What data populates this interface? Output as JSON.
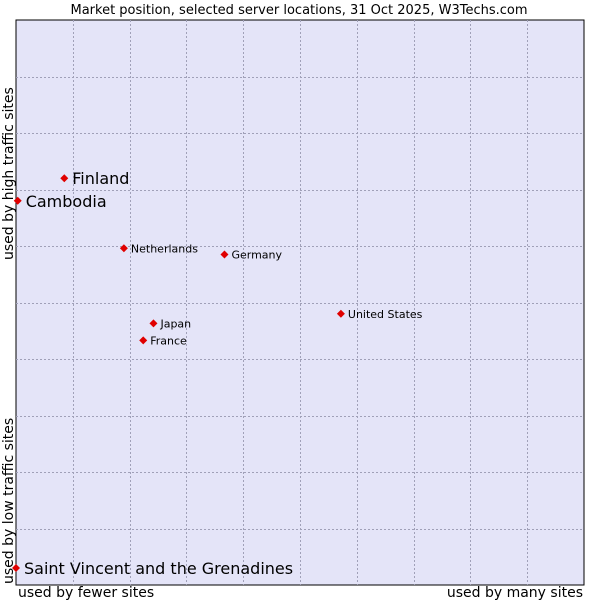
{
  "chart_data": {
    "type": "scatter",
    "title": "Market position, selected server locations, 31 Oct 2025, W3Techs.com",
    "xlabel_left": "used by fewer sites",
    "xlabel_right": "used by many sites",
    "ylabel_bottom": "used by low traffic sites",
    "ylabel_top": "used by high traffic sites",
    "xlim": [
      0,
      100
    ],
    "ylim": [
      0,
      100
    ],
    "grid": true,
    "points": [
      {
        "label": "Finland",
        "x": 8.5,
        "y": 72.0,
        "emphasis": true
      },
      {
        "label": "Cambodia",
        "x": 0.3,
        "y": 68.0,
        "emphasis": true
      },
      {
        "label": "Netherlands",
        "x": 19.0,
        "y": 59.6,
        "emphasis": false
      },
      {
        "label": "Germany",
        "x": 36.7,
        "y": 58.5,
        "emphasis": false
      },
      {
        "label": "United States",
        "x": 57.2,
        "y": 48.0,
        "emphasis": false
      },
      {
        "label": "Japan",
        "x": 24.2,
        "y": 46.3,
        "emphasis": false
      },
      {
        "label": "France",
        "x": 22.4,
        "y": 43.3,
        "emphasis": false
      },
      {
        "label": "Saint Vincent and the Grenadines",
        "x": 0.0,
        "y": 3.0,
        "emphasis": true
      }
    ]
  }
}
